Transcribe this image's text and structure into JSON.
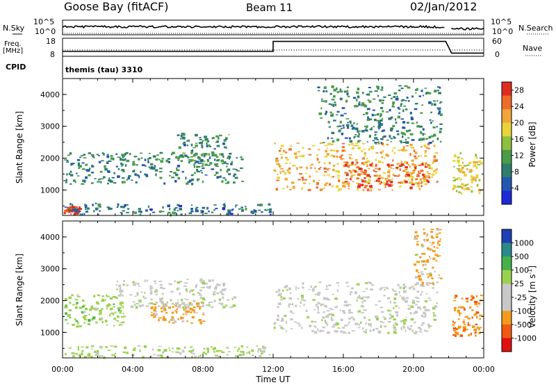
{
  "header": {
    "station": "Goose Bay (fitACF)",
    "beam": "Beam 11",
    "date": "02/Jan/2012"
  },
  "status_panels": {
    "nsky_label": "N.Sky",
    "nsky_ticks": [
      "10^5",
      "10^0"
    ],
    "nsearch_label": "N.Search",
    "nsearch_ticks": [
      "10^5",
      "10^0"
    ],
    "freq_label_1": "Freq.",
    "freq_label_2": "[MHz]",
    "freq_ticks": [
      "18",
      "8"
    ],
    "nave_label": "Nave",
    "nave_ticks": [
      "60",
      "0"
    ],
    "cpid_label": "CPID",
    "cpid_text": "themis (tau) 3310"
  },
  "axes": {
    "x_ticks": [
      "00:00",
      "04:00",
      "08:00",
      "12:00",
      "16:00",
      "20:00",
      "00:00"
    ],
    "x_title": "Time UT",
    "y_title": "Slant Range [km]",
    "y_ticks": [
      "1000",
      "2000",
      "3000",
      "4000"
    ]
  },
  "colorbars": {
    "power_title": "Power [dB]",
    "power_ticks": [
      "4",
      "8",
      "12",
      "16",
      "20",
      "24",
      "28"
    ],
    "velocity_title": "Velocity [m s",
    "velocity_title_sup": "-1",
    "velocity_title_end": "]",
    "velocity_ticks": [
      "1000",
      "500",
      "100",
      "25",
      "-25",
      "-100",
      "-500",
      "-1000"
    ]
  },
  "chart_data": [
    {
      "type": "line",
      "name": "N.Sky",
      "x": [
        "00:00",
        "01:00",
        "04:00",
        "08:00",
        "12:00",
        "16:00",
        "20:00",
        "21:50",
        "22:10",
        "24:00"
      ],
      "y_relative": [
        0.78,
        0.8,
        0.78,
        0.78,
        0.8,
        0.78,
        0.78,
        0.78,
        0.92,
        0.92
      ],
      "gap": [
        "21:50",
        "22:10"
      ],
      "yscale": "log"
    },
    {
      "type": "line",
      "name": "Freq. [MHz]",
      "x": [
        "00:00",
        "12:00",
        "12:00",
        "21:50",
        "22:10",
        "24:00"
      ],
      "y": [
        10.5,
        10.5,
        16.5,
        16.5,
        9.5,
        9.5
      ],
      "ylim": [
        8,
        18
      ]
    },
    {
      "type": "heatmap",
      "name": "Power",
      "xlabel": "Time UT",
      "ylabel": "Slant Range [km]",
      "xlim": [
        0,
        24
      ],
      "ylim": [
        200,
        4500
      ],
      "colorbar_range": [
        0,
        30
      ],
      "colorbar_unit": "dB",
      "regions": [
        {
          "t": [
            0.0,
            10.2
          ],
          "r": [
            1200,
            2200
          ],
          "level": 9
        },
        {
          "t": [
            6.5,
            9.5
          ],
          "r": [
            1800,
            2800
          ],
          "level": 10
        },
        {
          "t": [
            12.0,
            21.3
          ],
          "r": [
            1000,
            2500
          ],
          "level": 21
        },
        {
          "t": [
            16.0,
            21.0
          ],
          "r": [
            1100,
            1900
          ],
          "level": 26
        },
        {
          "t": [
            14.5,
            21.5
          ],
          "r": [
            2500,
            4300
          ],
          "level": 9
        },
        {
          "t": [
            0.0,
            1.0
          ],
          "r": [
            250,
            500
          ],
          "level": 28
        },
        {
          "t": [
            0.0,
            11.8
          ],
          "r": [
            250,
            600
          ],
          "level": 7
        },
        {
          "t": [
            22.2,
            23.8
          ],
          "r": [
            900,
            2200
          ],
          "level": 18
        }
      ]
    },
    {
      "type": "heatmap",
      "name": "Velocity",
      "xlabel": "Time UT",
      "ylabel": "Slant Range [km]",
      "xlim": [
        0,
        24
      ],
      "ylim": [
        200,
        4500
      ],
      "colorbar_range": [
        -1000,
        1000
      ],
      "colorbar_unit": "m s-1",
      "regions": [
        {
          "t": [
            0.0,
            3.5
          ],
          "r": [
            1200,
            2200
          ],
          "value": 60
        },
        {
          "t": [
            5.0,
            8.0
          ],
          "r": [
            1300,
            2000
          ],
          "value": -200
        },
        {
          "t": [
            3.0,
            10.0
          ],
          "r": [
            1800,
            2700
          ],
          "value": 0
        },
        {
          "t": [
            12.0,
            21.3
          ],
          "r": [
            1000,
            2600
          ],
          "value": 0
        },
        {
          "t": [
            20.0,
            21.5
          ],
          "r": [
            2500,
            4300
          ],
          "value": -150
        },
        {
          "t": [
            0.0,
            11.8
          ],
          "r": [
            250,
            600
          ],
          "value": 50
        },
        {
          "t": [
            22.2,
            23.8
          ],
          "r": [
            900,
            2200
          ],
          "value": -400
        }
      ]
    }
  ]
}
